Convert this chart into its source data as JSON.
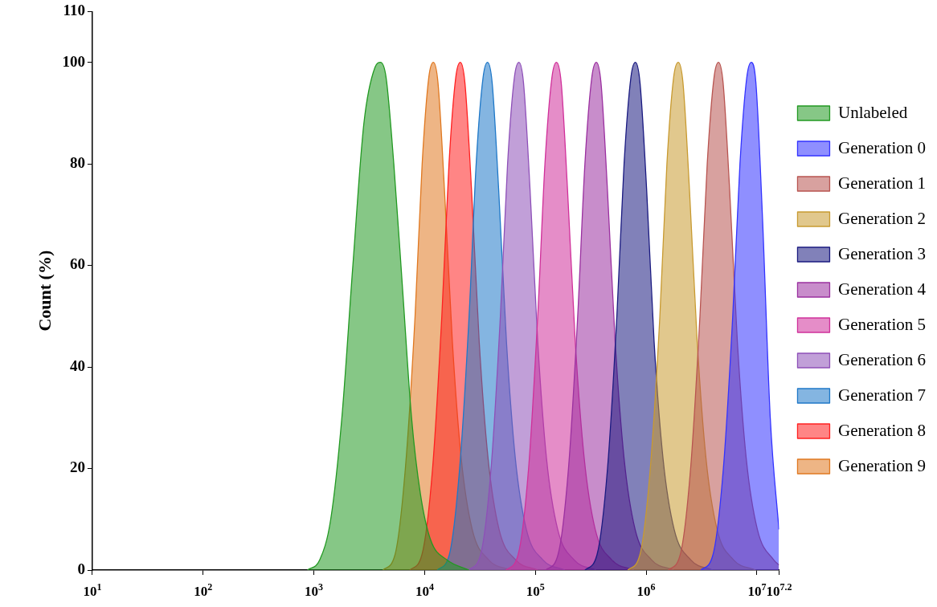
{
  "chart_data": {
    "type": "area",
    "ylabel": "Count (%)",
    "log": "x",
    "grid": false,
    "legend": "right",
    "marker": "none",
    "xlim": [
      10,
      15848932
    ],
    "xticks": [
      {
        "value": 10,
        "label": "10$^{1}$"
      },
      {
        "value": 100,
        "label": "10$^{2}$"
      },
      {
        "value": 1000,
        "label": "10$^{3}$"
      },
      {
        "value": 10000,
        "label": "10$^{4}$"
      },
      {
        "value": 100000,
        "label": "10$^{5}$"
      },
      {
        "value": 1000000,
        "label": "10$^{6}$"
      },
      {
        "value": 10000000,
        "label": "10$^{7}$"
      },
      {
        "value": 15848932,
        "label": "10$^{7.2}$"
      }
    ],
    "ylim": [
      0,
      110
    ],
    "yticks": [
      0,
      20,
      40,
      60,
      80,
      100,
      110
    ],
    "series": [
      {
        "name": "Unlabeled",
        "color": "#229922",
        "x": [
          876,
          1130,
          1420,
          1790,
          2250,
          2830,
          3560,
          4000,
          4490,
          5270,
          6340,
          7620,
          9160,
          11300,
          15900,
          25200
        ],
        "values": [
          0,
          2,
          10,
          30,
          60,
          88,
          99,
          100,
          97,
          80,
          55,
          30,
          15,
          6,
          2,
          0
        ]
      },
      {
        "name": "Generation 0",
        "color": "#3333ff",
        "x": [
          3120000,
          4010000,
          4980000,
          6050000,
          7030000,
          8100000,
          8900000,
          9790000,
          11200000,
          13200000,
          15800000
        ],
        "values": [
          0,
          3,
          20,
          50,
          80,
          97,
          100,
          96,
          70,
          30,
          8
        ]
      },
      {
        "name": "Generation 1",
        "color": "#b85450",
        "x": [
          1580000,
          2030000,
          2520000,
          3060000,
          3560000,
          4100000,
          4500000,
          4950000,
          5670000,
          6660000,
          8010000,
          10100000,
          14200000,
          15800000
        ],
        "values": [
          0,
          3,
          20,
          50,
          80,
          97,
          100,
          96,
          75,
          45,
          22,
          8,
          2,
          1
        ]
      },
      {
        "name": "Generation 2",
        "color": "#c89a30",
        "x": [
          683000,
          878000,
          1090000,
          1330000,
          1540000,
          1770000,
          1950000,
          2150000,
          2460000,
          2890000,
          3470000,
          4370000,
          6160000,
          9750000
        ],
        "values": [
          0,
          3,
          20,
          50,
          80,
          97,
          100,
          96,
          75,
          45,
          22,
          8,
          2,
          0
        ]
      },
      {
        "name": "Generation 3",
        "color": "#1a1a80",
        "x": [
          280000,
          360000,
          448000,
          544000,
          632000,
          728000,
          800000,
          880000,
          1010000,
          1180000,
          1420000,
          1790000,
          2530000,
          4000000
        ],
        "values": [
          0,
          3,
          20,
          50,
          80,
          97,
          100,
          96,
          75,
          45,
          22,
          8,
          2,
          0
        ]
      },
      {
        "name": "Generation 4",
        "color": "#9b30a0",
        "x": [
          124000,
          160000,
          199000,
          241000,
          280000,
          323000,
          355000,
          391000,
          447000,
          525000,
          632000,
          795000,
          1120000,
          1780000
        ],
        "values": [
          0,
          3,
          20,
          50,
          80,
          97,
          100,
          96,
          75,
          45,
          22,
          8,
          2,
          0
        ]
      },
      {
        "name": "Generation 5",
        "color": "#d0309a",
        "x": [
          54300,
          69800,
          86800,
          105000,
          122000,
          141000,
          155000,
          171000,
          195000,
          229000,
          276000,
          347000,
          490000,
          775000
        ],
        "values": [
          0,
          3,
          20,
          50,
          80,
          97,
          100,
          96,
          75,
          45,
          22,
          8,
          2,
          0
        ]
      },
      {
        "name": "Generation 6",
        "color": "#8e50b8",
        "x": [
          24900,
          32000,
          39800,
          48300,
          56100,
          64600,
          71000,
          78100,
          89500,
          105000,
          126000,
          159000,
          224000,
          355000
        ],
        "values": [
          0,
          3,
          20,
          50,
          80,
          97,
          100,
          96,
          75,
          45,
          22,
          8,
          2,
          0
        ]
      },
      {
        "name": "Generation 7",
        "color": "#1f78c8",
        "x": [
          13000,
          16700,
          20700,
          25200,
          29200,
          33700,
          37000,
          40700,
          46600,
          54800,
          65900,
          82900,
          117000,
          185000
        ],
        "values": [
          0,
          3,
          20,
          50,
          80,
          97,
          100,
          96,
          75,
          45,
          22,
          8,
          2,
          0
        ]
      },
      {
        "name": "Generation 8",
        "color": "#ff2020",
        "x": [
          7350,
          9450,
          11800,
          14300,
          16600,
          19100,
          21000,
          23100,
          26500,
          31100,
          37400,
          47000,
          66400,
          105000
        ],
        "values": [
          0,
          3,
          20,
          50,
          80,
          97,
          100,
          96,
          75,
          45,
          22,
          8,
          2,
          0
        ]
      },
      {
        "name": "Generation 9",
        "color": "#e07820",
        "x": [
          4200,
          5400,
          6700,
          8200,
          9500,
          10900,
          12000,
          13200,
          15100,
          17800,
          21400,
          26900,
          37900,
          60000
        ],
        "values": [
          0,
          3,
          20,
          50,
          80,
          97,
          100,
          96,
          75,
          45,
          22,
          8,
          2,
          0
        ]
      }
    ]
  }
}
